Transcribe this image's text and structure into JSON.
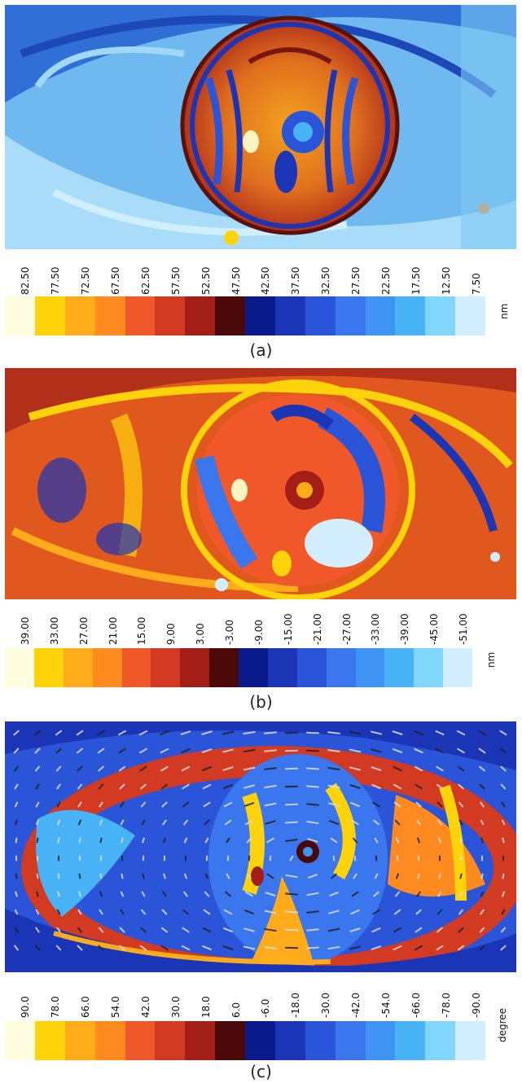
{
  "panels": [
    {
      "id": "a",
      "caption": "(a)",
      "unit": "nm",
      "ticks": [
        "82.50",
        "77.50",
        "72.50",
        "67.50",
        "62.50",
        "57.50",
        "52.50",
        "47.50",
        "42.50",
        "37.50",
        "32.50",
        "27.50",
        "22.50",
        "17.50",
        "12.50",
        "7.50"
      ],
      "colors": [
        "#fffde0",
        "#ffd30a",
        "#ffab1a",
        "#ff8a20",
        "#f0582a",
        "#d23a22",
        "#a41e18",
        "#4a0808",
        "#0a1a8a",
        "#1a35b5",
        "#2a55d8",
        "#3a76ee",
        "#3f93f2",
        "#48b3f6",
        "#80d6fb",
        "#d3efff"
      ]
    },
    {
      "id": "b",
      "caption": "(b)",
      "unit": "nm",
      "ticks": [
        "39.00",
        "33.00",
        "27.00",
        "21.00",
        "15.00",
        "9.00",
        "3.00",
        "-3.00",
        "-9.00",
        "-15.00",
        "-21.00",
        "-27.00",
        "-33.00",
        "-39.00",
        "-45.00",
        "-51.00"
      ],
      "colors": [
        "#fffde0",
        "#ffd30a",
        "#ffab1a",
        "#ff8a20",
        "#f0582a",
        "#d23a22",
        "#a41e18",
        "#4a0808",
        "#0a1a8a",
        "#1a35b5",
        "#2a55d8",
        "#3a76ee",
        "#3f93f2",
        "#48b3f6",
        "#80d6fb",
        "#d3efff"
      ]
    },
    {
      "id": "c",
      "caption": "(c)",
      "unit": "degree",
      "ticks": [
        "90.0",
        "78.0",
        "66.0",
        "54.0",
        "42.0",
        "30.0",
        "18.0",
        "6.0",
        "-6.0",
        "-18.0",
        "-30.0",
        "-42.0",
        "-54.0",
        "-66.0",
        "-78.0",
        "-90.0"
      ],
      "colors": [
        "#fffde0",
        "#ffd30a",
        "#ffab1a",
        "#ff8a20",
        "#f0582a",
        "#d23a22",
        "#a41e18",
        "#4a0808",
        "#0a1a8a",
        "#1a35b5",
        "#2a55d8",
        "#3a76ee",
        "#3f93f2",
        "#48b3f6",
        "#80d6fb",
        "#d3efff"
      ]
    }
  ]
}
